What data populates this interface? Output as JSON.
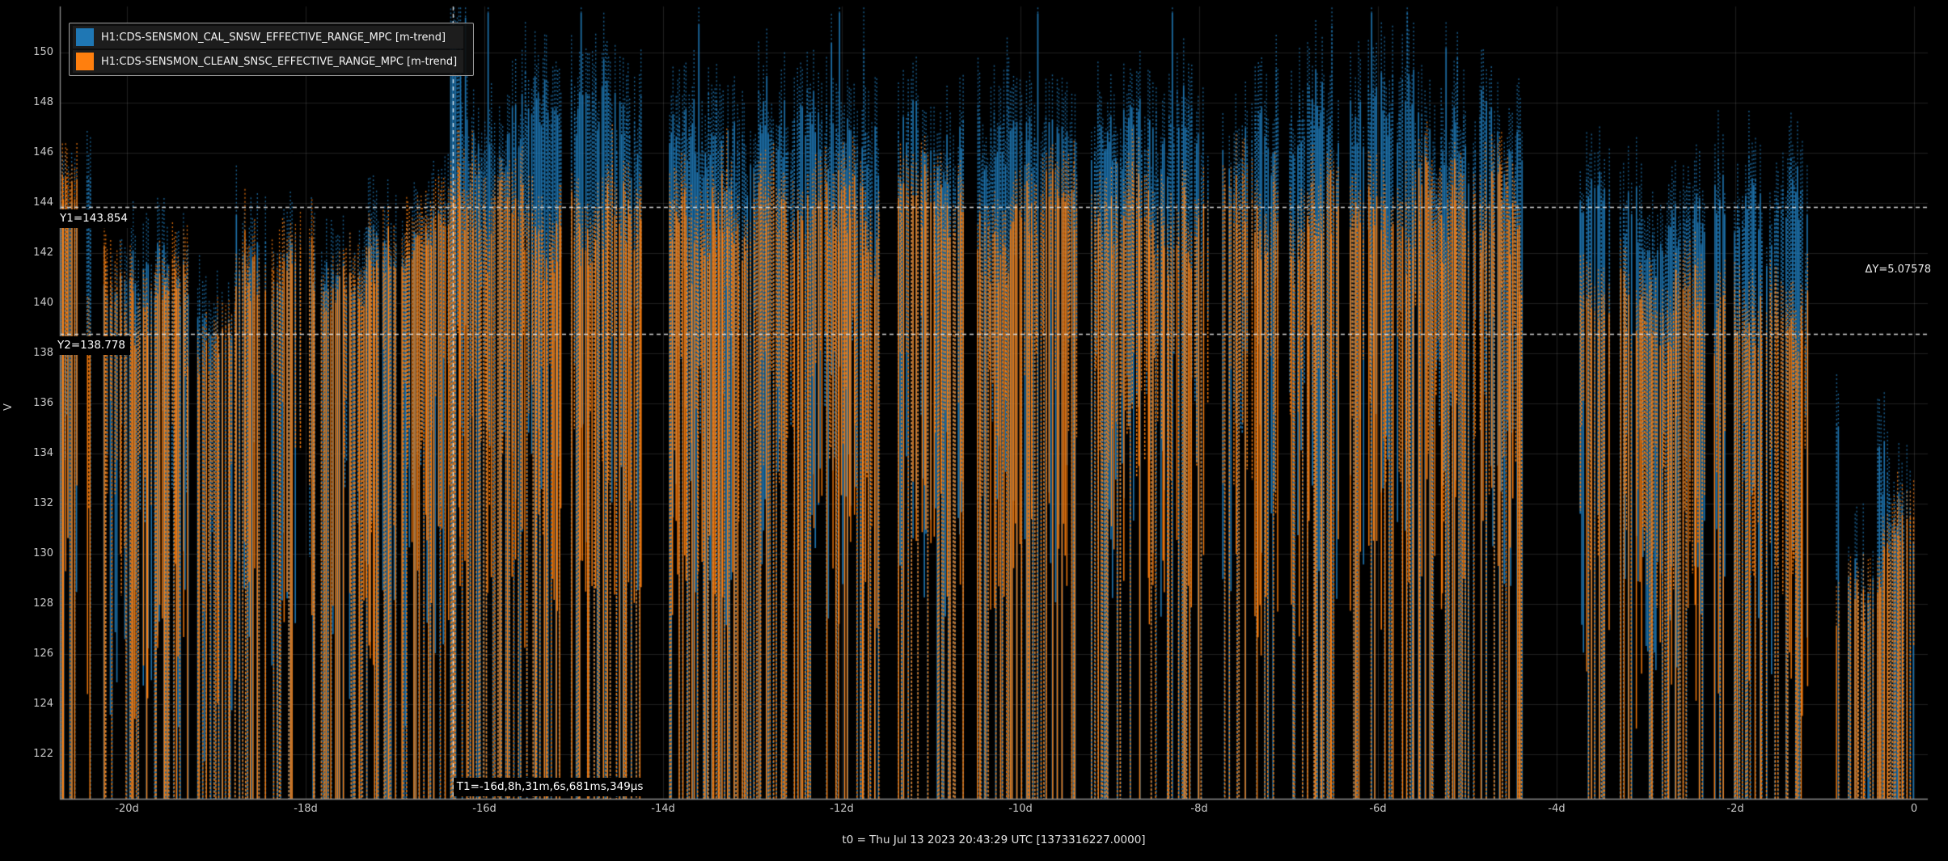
{
  "legend": {
    "items": [
      {
        "label": "H1:CDS-SENSMON_CAL_SNSW_EFFECTIVE_RANGE_MPC [m-trend]",
        "color": "#1f77b4"
      },
      {
        "label": "H1:CDS-SENSMON_CLEAN_SNSC_EFFECTIVE_RANGE_MPC [m-trend]",
        "color": "#ff7f0e"
      }
    ]
  },
  "axes": {
    "x": {
      "title": "t0 = Thu Jul 13 2023 20:43:29 UTC [1373316227.0000]",
      "unit": "days",
      "range": [
        -20.75,
        0.154
      ],
      "ticks": [
        {
          "t": -20,
          "label": "-20d"
        },
        {
          "t": -18,
          "label": "-18d"
        },
        {
          "t": -16,
          "label": "-16d"
        },
        {
          "t": -14,
          "label": "-14d"
        },
        {
          "t": -12,
          "label": "-12d"
        },
        {
          "t": -10,
          "label": "-10d"
        },
        {
          "t": -8,
          "label": "-8d"
        },
        {
          "t": -6,
          "label": "-6d"
        },
        {
          "t": -4,
          "label": "-4d"
        },
        {
          "t": -2,
          "label": "-2d"
        },
        {
          "t": 0,
          "label": "0"
        }
      ]
    },
    "y": {
      "label": "V",
      "range": [
        120.2,
        151.84
      ],
      "ticks": [
        {
          "v": 150,
          "label": "150"
        },
        {
          "v": 148,
          "label": "148"
        },
        {
          "v": 146,
          "label": "146"
        },
        {
          "v": 144,
          "label": "144"
        },
        {
          "v": 142,
          "label": "142"
        },
        {
          "v": 140,
          "label": "140"
        },
        {
          "v": 138,
          "label": "138"
        },
        {
          "v": 136,
          "label": "136"
        },
        {
          "v": 134,
          "label": "134"
        },
        {
          "v": 132,
          "label": "132"
        },
        {
          "v": 130,
          "label": "130"
        },
        {
          "v": 128,
          "label": "128"
        },
        {
          "v": 126,
          "label": "126"
        },
        {
          "v": 124,
          "label": "124"
        },
        {
          "v": 122,
          "label": "122"
        }
      ]
    }
  },
  "cursors": {
    "y1": {
      "value": 143.854,
      "label": "Y1=143.854"
    },
    "y2": {
      "value": 138.778,
      "label": "Y2=138.778"
    },
    "dy": {
      "value": 5.07578,
      "label": "ΔY=5.07578"
    },
    "t1": {
      "t": -16.35494,
      "label": "T1=-16d,8h,31m,6s,681ms,349μs"
    }
  },
  "chart_data": {
    "type": "minmax_trend_timeseries",
    "title": "",
    "xlabel": "t0 = Thu Jul 13 2023 20:43:29 UTC [1373316227.0000]",
    "ylabel": "V",
    "xlim_days": [
      -20.75,
      0.154
    ],
    "ylim": [
      120.2,
      151.84
    ],
    "grid": true,
    "legend_position": "top-left",
    "series": [
      {
        "name": "H1:CDS-SENSMON_CAL_SNSW_EFFECTIVE_RANGE_MPC [m-trend]",
        "color": "#1f77b4"
      },
      {
        "name": "H1:CDS-SENSMON_CLEAN_SNSC_EFFECTIVE_RANGE_MPC [m-trend]",
        "color": "#ff7f0e"
      }
    ],
    "segments": [
      {
        "t": [
          -20.75,
          -20.56
        ],
        "blue": [
          142.3,
          144.6
        ],
        "orange": [
          141.8,
          145.6
        ],
        "gap_p": 0.25,
        "drop_p": 0.6
      },
      {
        "t": [
          -20.56,
          -20.45
        ],
        "gap": true
      },
      {
        "t": [
          -20.45,
          -20.41
        ],
        "blue": [
          144.6,
          145.2
        ],
        "orange": [
          137.0,
          139.0
        ],
        "gap_p": 0.2,
        "drop_p": 0.7
      },
      {
        "t": [
          -20.41,
          -20.28
        ],
        "gap": true
      },
      {
        "t": [
          -20.28,
          -19.93
        ],
        "blue": [
          138.5,
          143.2
        ],
        "orange": [
          138.2,
          143.5
        ],
        "gap_p": 0.2,
        "drop_p": 0.55
      },
      {
        "t": [
          -19.93,
          -19.68
        ],
        "blue": [
          137.5,
          141.8
        ],
        "orange": [
          137.0,
          141.4
        ],
        "gap_p": 0.4,
        "drop_p": 0.55
      },
      {
        "t": [
          -19.68,
          -19.32
        ],
        "blue": [
          138.2,
          143.0
        ],
        "orange": [
          138.0,
          142.6
        ],
        "gap_p": 0.25,
        "drop_p": 0.55
      },
      {
        "t": [
          -19.32,
          -18.78
        ],
        "blue": [
          136.3,
          140.6
        ],
        "orange": [
          136.0,
          140.2
        ],
        "gap_p": 0.45,
        "drop_p": 0.6
      },
      {
        "t": [
          -18.78,
          -18.32
        ],
        "blue": [
          137.8,
          143.8
        ],
        "orange": [
          137.5,
          143.3
        ],
        "gap_p": 0.25,
        "drop_p": 0.55
      },
      {
        "t": [
          -18.32,
          -17.88
        ],
        "blue": [
          138.8,
          143.4
        ],
        "orange": [
          138.5,
          143.0
        ],
        "gap_p": 0.3,
        "drop_p": 0.55
      },
      {
        "t": [
          -17.88,
          -17.62
        ],
        "blue": [
          138.8,
          142.6
        ],
        "orange": [
          138.5,
          142.2
        ],
        "gap_p": 0.35,
        "drop_p": 0.55
      },
      {
        "t": [
          -17.62,
          -17.32
        ],
        "blue": [
          139.2,
          143.0
        ],
        "orange": [
          139.0,
          142.7
        ],
        "gap_p": 0.3,
        "drop_p": 0.55
      },
      {
        "t": [
          -17.32,
          -16.88
        ],
        "blue": [
          140.0,
          144.4
        ],
        "orange": [
          139.6,
          144.1
        ],
        "gap_p": 0.18,
        "drop_p": 0.55
      },
      {
        "t": [
          -16.88,
          -16.38
        ],
        "blue": [
          140.8,
          144.2
        ],
        "orange": [
          140.5,
          144.0
        ],
        "gap_p": 0.1,
        "drop_p": 0.5
      },
      {
        "t": [
          -16.38,
          -16.27
        ],
        "blue": [
          148.5,
          151.8
        ],
        "orange": [
          142.5,
          146.5
        ],
        "gap_p": 0.05,
        "drop_p": 0.45
      },
      {
        "t": [
          -16.27,
          -15.13
        ],
        "blue": [
          142.8,
          149.6
        ],
        "orange": [
          139.3,
          146.0
        ],
        "gap_p": 0.15,
        "drop_p": 0.5,
        "spike_p": 0.03
      },
      {
        "t": [
          -15.13,
          -15.03
        ],
        "gap": true
      },
      {
        "t": [
          -15.03,
          -14.23
        ],
        "blue": [
          143.0,
          150.3
        ],
        "orange": [
          139.5,
          146.2
        ],
        "gap_p": 0.15,
        "drop_p": 0.5,
        "spike_p": 0.03
      },
      {
        "t": [
          -14.23,
          -13.93
        ],
        "gap": true
      },
      {
        "t": [
          -13.93,
          -11.59
        ],
        "blue": [
          142.6,
          150.0
        ],
        "orange": [
          139.0,
          146.0
        ],
        "gap_p": 0.15,
        "drop_p": 0.5,
        "spike_p": 0.035
      },
      {
        "t": [
          -11.59,
          -11.37
        ],
        "gap": true
      },
      {
        "t": [
          -11.37,
          -10.63
        ],
        "blue": [
          142.8,
          149.8
        ],
        "orange": [
          139.2,
          146.0
        ],
        "gap_p": 0.15,
        "drop_p": 0.5,
        "spike_p": 0.03
      },
      {
        "t": [
          -10.63,
          -10.48
        ],
        "gap": true
      },
      {
        "t": [
          -10.48,
          -9.34
        ],
        "blue": [
          142.6,
          150.2
        ],
        "orange": [
          139.0,
          146.2
        ],
        "gap_p": 0.15,
        "drop_p": 0.5,
        "spike_p": 0.035
      },
      {
        "t": [
          -9.34,
          -9.21
        ],
        "gap": true
      },
      {
        "t": [
          -9.21,
          -7.89
        ],
        "blue": [
          142.8,
          150.4
        ],
        "orange": [
          139.2,
          146.3
        ],
        "gap_p": 0.15,
        "drop_p": 0.5,
        "spike_p": 0.03
      },
      {
        "t": [
          -7.89,
          -7.74
        ],
        "gap": true
      },
      {
        "t": [
          -7.74,
          -7.11
        ],
        "blue": [
          142.6,
          149.6
        ],
        "orange": [
          139.0,
          146.0
        ],
        "gap_p": 0.15,
        "drop_p": 0.5,
        "spike_p": 0.03
      },
      {
        "t": [
          -7.11,
          -6.99
        ],
        "gap": true
      },
      {
        "t": [
          -6.99,
          -6.43
        ],
        "blue": [
          142.8,
          149.8
        ],
        "orange": [
          139.2,
          146.0
        ],
        "gap_p": 0.15,
        "drop_p": 0.5,
        "spike_p": 0.03
      },
      {
        "t": [
          -6.43,
          -6.31
        ],
        "gap": true
      },
      {
        "t": [
          -6.31,
          -4.36
        ],
        "blue": [
          142.5,
          150.0
        ],
        "orange": [
          138.8,
          146.2
        ],
        "gap_p": 0.18,
        "drop_p": 0.5,
        "spike_p": 0.03
      },
      {
        "t": [
          -4.36,
          -3.74
        ],
        "gap": true
      },
      {
        "t": [
          -3.74,
          -3.38
        ],
        "blue": [
          141.8,
          145.6
        ],
        "orange": [
          138.0,
          141.6
        ],
        "gap_p": 0.15,
        "drop_p": 0.5
      },
      {
        "t": [
          -3.38,
          -3.31
        ],
        "gap": true
      },
      {
        "t": [
          -3.31,
          -2.35
        ],
        "blue": [
          139.8,
          146.0
        ],
        "orange": [
          136.4,
          142.6
        ],
        "gap_p": 0.22,
        "drop_p": 0.55
      },
      {
        "t": [
          -2.35,
          -2.25
        ],
        "gap": true
      },
      {
        "t": [
          -2.25,
          -1.19
        ],
        "blue": [
          139.5,
          146.3
        ],
        "orange": [
          136.0,
          142.2
        ],
        "gap_p": 0.22,
        "drop_p": 0.55
      },
      {
        "t": [
          -1.19,
          -0.87
        ],
        "gap": true
      },
      {
        "t": [
          -0.87,
          -0.85
        ],
        "blue": [
          134.6,
          135.3
        ],
        "orange": [
          126.0,
          128.0
        ],
        "gap_p": 0.0,
        "drop_p": 0.8
      },
      {
        "t": [
          -0.85,
          -0.79
        ],
        "gap": true
      },
      {
        "t": [
          -0.79,
          -0.45
        ],
        "blue": [
          126.5,
          132.0
        ],
        "orange": [
          124.5,
          130.6
        ],
        "gap_p": 0.3,
        "drop_p": 0.6
      },
      {
        "t": [
          -0.45,
          -0.41
        ],
        "gap": true
      },
      {
        "t": [
          -0.41,
          0.02
        ],
        "blue": [
          127.5,
          135.0
        ],
        "orange": [
          125.5,
          132.6
        ],
        "gap_p": 0.25,
        "drop_p": 0.6
      }
    ]
  }
}
